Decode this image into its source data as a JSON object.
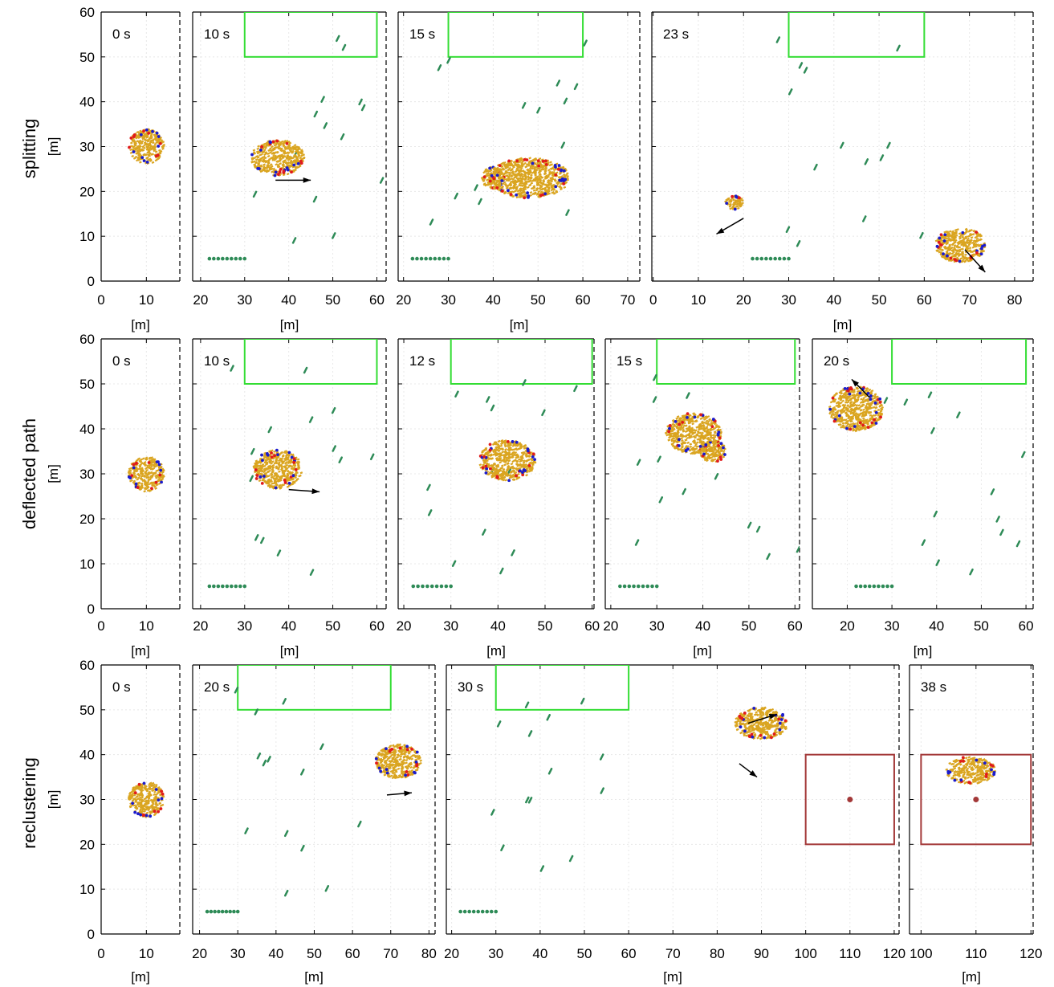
{
  "chart_data": {
    "type": "scatter",
    "colors": {
      "swarm": "#daa520",
      "predator_blue": "#1b1bcc",
      "predator_red": "#e01b1b",
      "agents": "#2e8b57",
      "goal_box": "#33dd33",
      "target_box": "#a33838",
      "target_point": "#a33838",
      "arrow": "#000000"
    },
    "rows": [
      {
        "label": "splitting",
        "ylabel": "[m]",
        "ylim": [
          0,
          60
        ],
        "yticks": [
          0,
          10,
          20,
          30,
          40,
          50,
          60
        ],
        "panels": [
          {
            "time": "0 s",
            "xlabel": "[m]",
            "xlim": [
              0,
              17.4
            ],
            "xticks": [
              0,
              10
            ],
            "swarm": [
              {
                "cx": 10,
                "cy": 30,
                "rx": 3.9,
                "ry": 3.9
              }
            ],
            "agents_line": true
          },
          {
            "time": "10 s",
            "xlabel": "[m]",
            "xlim": [
              18.2,
              62.1
            ],
            "xticks": [
              20,
              30,
              40,
              50,
              60
            ],
            "goal": [
              30,
              50,
              60,
              60
            ],
            "swarm": [
              {
                "cx": 37.5,
                "cy": 27.5,
                "rx": 6,
                "ry": 4
              }
            ],
            "arrows": [
              [
                37,
                22.5,
                45,
                22.5
              ]
            ]
          },
          {
            "time": "15 s",
            "xlabel": "[m]",
            "xlim": [
              18.8,
              72.7
            ],
            "xticks": [
              20,
              30,
              40,
              50,
              60,
              70
            ],
            "goal": [
              30,
              50,
              60,
              60
            ],
            "swarm": [
              {
                "cx": 40,
                "cy": 23,
                "rx": 2.5,
                "ry": 2.5
              },
              {
                "cx": 48,
                "cy": 23,
                "rx": 9,
                "ry": 4.5
              }
            ]
          },
          {
            "time": "23 s",
            "xlabel": "[m]",
            "xlim": [
              -0.3,
              84.1
            ],
            "xticks": [
              0,
              10,
              20,
              30,
              40,
              50,
              60,
              70,
              80
            ],
            "goal": [
              30,
              50,
              60,
              60
            ],
            "swarm": [
              {
                "cx": 18,
                "cy": 17.5,
                "rx": 2,
                "ry": 1.5
              },
              {
                "cx": 68,
                "cy": 8,
                "rx": 5.5,
                "ry": 3.8
              }
            ],
            "arrows": [
              [
                20,
                14,
                14,
                10.5
              ],
              [
                69,
                7,
                73.5,
                2
              ]
            ]
          }
        ]
      },
      {
        "label": "deflected path",
        "ylabel": "[m]",
        "ylim": [
          0,
          60
        ],
        "yticks": [
          0,
          10,
          20,
          30,
          40,
          50,
          60
        ],
        "panels": [
          {
            "time": "0 s",
            "xlabel": "[m]",
            "xlim": [
              0,
              17.4
            ],
            "xticks": [
              0,
              10
            ],
            "swarm": [
              {
                "cx": 10,
                "cy": 30,
                "rx": 3.9,
                "ry": 3.9
              }
            ]
          },
          {
            "time": "10 s",
            "xlabel": "[m]",
            "xlim": [
              18.2,
              62.1
            ],
            "xticks": [
              20,
              30,
              40,
              50,
              60
            ],
            "goal": [
              30,
              50,
              60,
              60
            ],
            "swarm": [
              {
                "cx": 37.5,
                "cy": 31,
                "rx": 5.5,
                "ry": 4.3
              }
            ],
            "arrows": [
              [
                40,
                26.5,
                47,
                26
              ]
            ]
          },
          {
            "time": "12 s",
            "xlabel": "[m]",
            "xlim": [
              18.8,
              60.4
            ],
            "xticks": [
              20,
              30,
              40,
              50,
              60
            ],
            "goal": [
              30,
              50,
              60,
              60
            ],
            "swarm": [
              {
                "cx": 42,
                "cy": 33,
                "rx": 6,
                "ry": 4.5
              }
            ]
          },
          {
            "time": "15 s",
            "xlabel": "[m]",
            "xlim": [
              18.8,
              61.0
            ],
            "xticks": [
              20,
              30,
              40,
              50,
              60
            ],
            "goal": [
              30,
              50,
              60,
              60
            ],
            "swarm": [
              {
                "cx": 38,
                "cy": 39,
                "rx": 6,
                "ry": 4.5
              },
              {
                "cx": 42,
                "cy": 35,
                "rx": 3,
                "ry": 2.5
              }
            ]
          },
          {
            "time": "20 s",
            "xlabel": "[m]",
            "xlim": [
              12.2,
              61.6
            ],
            "xticks": [
              20,
              30,
              40,
              50,
              60
            ],
            "goal": [
              30,
              50,
              60,
              60
            ],
            "swarm": [
              {
                "cx": 22,
                "cy": 44.5,
                "rx": 6,
                "ry": 5
              }
            ],
            "arrows": [
              [
                25,
                47,
                21,
                51
              ]
            ]
          }
        ]
      },
      {
        "label": "reclustering",
        "ylabel": "[m]",
        "ylim": [
          0,
          60
        ],
        "yticks": [
          0,
          10,
          20,
          30,
          40,
          50,
          60
        ],
        "panels": [
          {
            "time": "0 s",
            "xlabel": "[m]",
            "xlim": [
              0,
              17.4
            ],
            "xticks": [
              0,
              10
            ],
            "swarm": [
              {
                "cx": 10,
                "cy": 30,
                "rx": 3.9,
                "ry": 3.9
              }
            ]
          },
          {
            "time": "20 s",
            "xlabel": "[m]",
            "xlim": [
              18.2,
              81.6
            ],
            "xticks": [
              20,
              30,
              40,
              50,
              60,
              70,
              80
            ],
            "goal": [
              30,
              50,
              70,
              60
            ],
            "swarm": [
              {
                "cx": 72,
                "cy": 38.5,
                "rx": 6,
                "ry": 3.8
              }
            ],
            "arrows": [
              [
                69,
                31,
                75.5,
                31.5
              ]
            ]
          },
          {
            "time": "30 s",
            "xlabel": "[m]",
            "xlim": [
              18.8,
              121.1
            ],
            "xticks": [
              20,
              30,
              40,
              50,
              60,
              70,
              80,
              90,
              100,
              110,
              120
            ],
            "goal": [
              30,
              50,
              60,
              60
            ],
            "target": [
              100,
              20,
              120,
              40
            ],
            "target_point": [
              110,
              30
            ],
            "swarm": [
              {
                "cx": 90,
                "cy": 47,
                "rx": 6,
                "ry": 3.5
              }
            ],
            "arrows": [
              [
                87,
                47,
                93.5,
                49
              ],
              [
                85,
                38,
                89,
                35
              ]
            ]
          },
          {
            "time": "38 s",
            "xlabel": "[m]",
            "xlim": [
              97.9,
              120.4
            ],
            "xticks": [
              100,
              110,
              120
            ],
            "target": [
              100,
              20,
              120,
              40
            ],
            "target_point": [
              110,
              30
            ],
            "swarm": [
              {
                "cx": 109,
                "cy": 36.5,
                "rx": 4.5,
                "ry": 3
              }
            ]
          }
        ]
      }
    ]
  }
}
